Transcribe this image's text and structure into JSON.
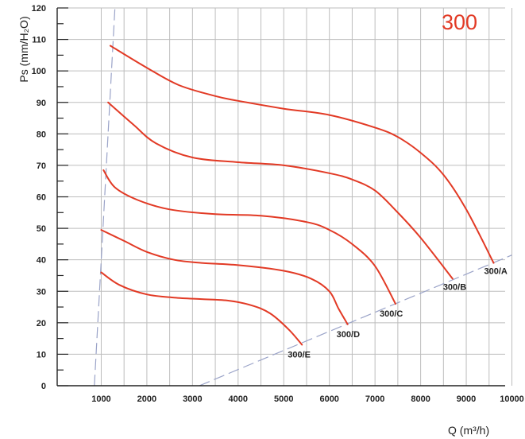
{
  "chart_data": {
    "type": "line",
    "title": "300",
    "xlabel": "Q (m³/h)",
    "ylabel": "Ps (mm/H₂O)",
    "xlim": [
      0,
      10000
    ],
    "ylim": [
      0,
      120
    ],
    "x_ticks": [
      "1000",
      "2000",
      "3000",
      "4000",
      "5000",
      "6000",
      "7000",
      "8000",
      "9000",
      "10000"
    ],
    "y_ticks": [
      "0",
      "10",
      "20",
      "30",
      "40",
      "50",
      "60",
      "70",
      "80",
      "90",
      "100",
      "110",
      "120"
    ],
    "grid": true,
    "series": [
      {
        "name": "300/A",
        "x": [
          1200,
          2000,
          2700,
          3500,
          4000,
          5000,
          6000,
          7000,
          7500,
          8000,
          8500,
          9000,
          9600
        ],
        "y": [
          108,
          101,
          95.5,
          92,
          90.5,
          88,
          86,
          82,
          79,
          74,
          67,
          56,
          39
        ]
      },
      {
        "name": "300/B",
        "x": [
          1150,
          1700,
          2200,
          3000,
          4000,
          5000,
          6000,
          6500,
          7000,
          7500,
          8000,
          8700
        ],
        "y": [
          90,
          83,
          77,
          72.5,
          71,
          70,
          67.5,
          65.5,
          62,
          55,
          47,
          34
        ]
      },
      {
        "name": "300/C",
        "x": [
          1050,
          1300,
          1800,
          2500,
          3500,
          4500,
          5500,
          6000,
          6500,
          7000,
          7450
        ],
        "y": [
          68.5,
          63,
          59,
          56,
          54.5,
          54,
          52,
          49.5,
          45,
          38,
          26
        ]
      },
      {
        "name": "300/D",
        "x": [
          1000,
          1500,
          2000,
          2600,
          3200,
          4000,
          5000,
          5600,
          6000,
          6200,
          6400
        ],
        "y": [
          49.5,
          46,
          42.5,
          40,
          39,
          38.3,
          36.5,
          34,
          30,
          24.5,
          19.5
        ]
      },
      {
        "name": "300/E",
        "x": [
          1000,
          1400,
          2000,
          2600,
          3200,
          3800,
          4300,
          4700,
          5100,
          5400
        ],
        "y": [
          36,
          32,
          29,
          28,
          27.5,
          27,
          25.5,
          23,
          18,
          13
        ]
      }
    ],
    "reference_lines": [
      {
        "x": [
          850,
          1000,
          1300
        ],
        "y": [
          0,
          40,
          120
        ]
      },
      {
        "x": [
          3150,
          10000
        ],
        "y": [
          0,
          41.5
        ]
      }
    ],
    "colors": {
      "curve": "#e23a25",
      "title": "#e23a25",
      "grid": "#bdbdbd",
      "axis": "#222222",
      "reference": "#9aa3c8"
    }
  }
}
